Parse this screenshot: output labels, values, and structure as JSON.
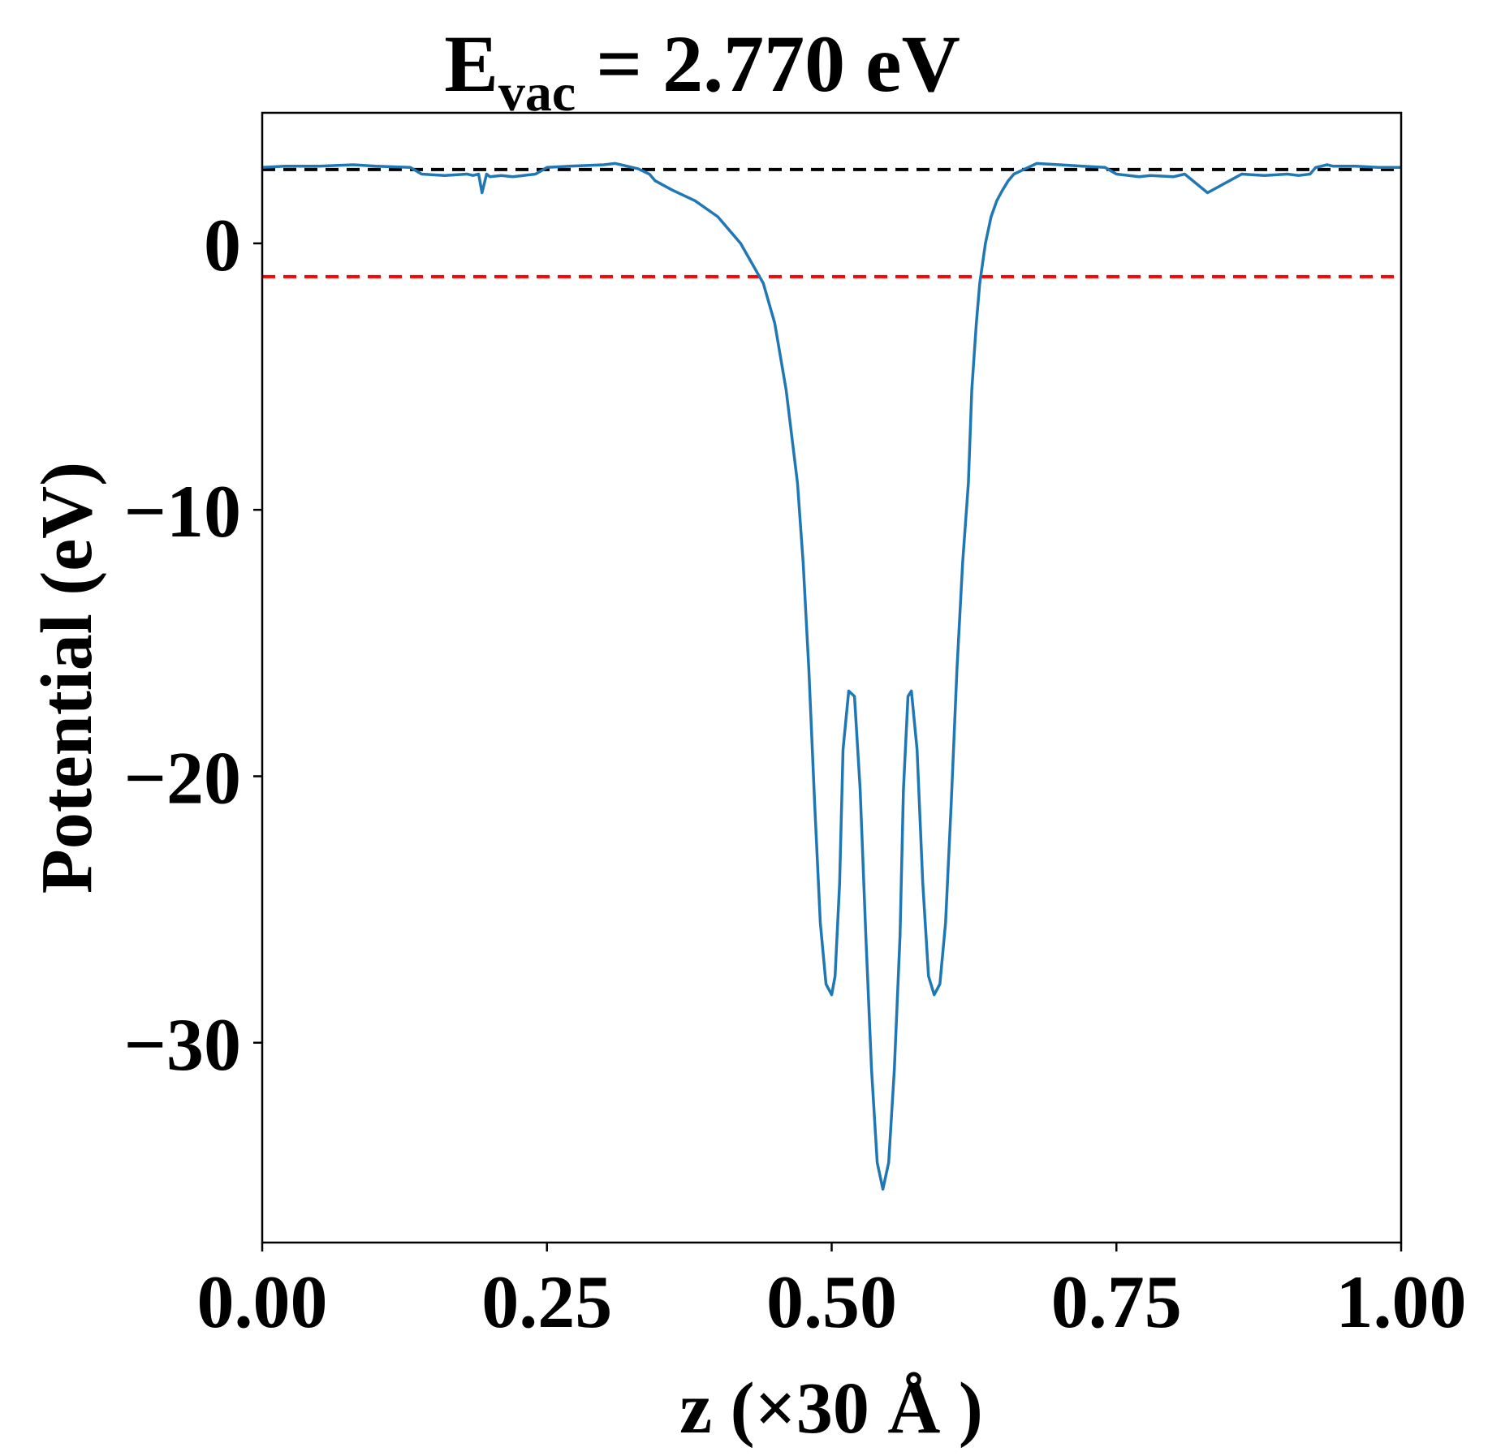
{
  "chart_data": {
    "type": "line",
    "title_main": "E",
    "title_sub": "vac",
    "title_rest": " = 2.770 eV",
    "xlabel": "z (×30 Å )",
    "ylabel": "Potential (eV)",
    "xlim": [
      0.0,
      1.0
    ],
    "ylim": [
      -37.5,
      4.9
    ],
    "xticks": [
      {
        "value": 0.0,
        "label": "0.00"
      },
      {
        "value": 0.25,
        "label": "0.25"
      },
      {
        "value": 0.5,
        "label": "0.50"
      },
      {
        "value": 0.75,
        "label": "0.75"
      },
      {
        "value": 1.0,
        "label": "1.00"
      }
    ],
    "yticks": [
      {
        "value": 0,
        "label": "0"
      },
      {
        "value": -10,
        "label": "−10"
      },
      {
        "value": -20,
        "label": "−20"
      },
      {
        "value": -30,
        "label": "−30"
      }
    ],
    "reference_lines": [
      {
        "y": 2.77,
        "color": "#000000",
        "style": "dashed",
        "x_start": 0.0,
        "x_end": 1.0
      },
      {
        "y": -1.25,
        "color": "#ff0000",
        "style": "dashed",
        "x_start": 0.0,
        "x_end": 1.0
      }
    ],
    "series": [
      {
        "color": "#1f77b4",
        "x": [
          0.0,
          0.02,
          0.05,
          0.08,
          0.1,
          0.13,
          0.14,
          0.16,
          0.18,
          0.185,
          0.19,
          0.193,
          0.197,
          0.2,
          0.21,
          0.22,
          0.24,
          0.25,
          0.27,
          0.3,
          0.31,
          0.33,
          0.34,
          0.345,
          0.36,
          0.38,
          0.4,
          0.42,
          0.44,
          0.45,
          0.46,
          0.47,
          0.475,
          0.48,
          0.485,
          0.49,
          0.495,
          0.5,
          0.503,
          0.507,
          0.51,
          0.515,
          0.52,
          0.525,
          0.53,
          0.535,
          0.54,
          0.545,
          0.55,
          0.555,
          0.56,
          0.563,
          0.567,
          0.57,
          0.575,
          0.58,
          0.585,
          0.59,
          0.595,
          0.6,
          0.605,
          0.61,
          0.615,
          0.62,
          0.623,
          0.627,
          0.63,
          0.635,
          0.64,
          0.645,
          0.65,
          0.655,
          0.66,
          0.67,
          0.68,
          0.7,
          0.72,
          0.74,
          0.75,
          0.77,
          0.78,
          0.8,
          0.81,
          0.83,
          0.86,
          0.88,
          0.9,
          0.91,
          0.92,
          0.925,
          0.93,
          0.935,
          0.94,
          0.96,
          0.98,
          1.0
        ],
        "y": [
          2.85,
          2.9,
          2.9,
          2.95,
          2.9,
          2.85,
          2.6,
          2.55,
          2.6,
          2.55,
          2.6,
          1.9,
          2.6,
          2.5,
          2.55,
          2.5,
          2.6,
          2.85,
          2.9,
          2.95,
          3.0,
          2.8,
          2.6,
          2.35,
          2.0,
          1.6,
          1.0,
          0.0,
          -1.5,
          -3.0,
          -5.5,
          -9.0,
          -12.0,
          -16.0,
          -21.0,
          -25.5,
          -27.8,
          -28.2,
          -27.5,
          -24.0,
          -19.0,
          -16.8,
          -17.0,
          -20.5,
          -26.0,
          -31.0,
          -34.5,
          -35.5,
          -34.5,
          -31.0,
          -26.0,
          -20.5,
          -17.0,
          -16.8,
          -19.0,
          -24.0,
          -27.5,
          -28.2,
          -27.8,
          -25.5,
          -21.0,
          -16.0,
          -12.0,
          -9.0,
          -5.5,
          -3.0,
          -1.5,
          0.0,
          1.0,
          1.6,
          2.0,
          2.35,
          2.6,
          2.8,
          3.0,
          2.95,
          2.9,
          2.85,
          2.6,
          2.5,
          2.55,
          2.5,
          2.6,
          1.9,
          2.6,
          2.55,
          2.6,
          2.55,
          2.6,
          2.85,
          2.9,
          2.95,
          2.9,
          2.9,
          2.85,
          2.85
        ]
      }
    ]
  }
}
